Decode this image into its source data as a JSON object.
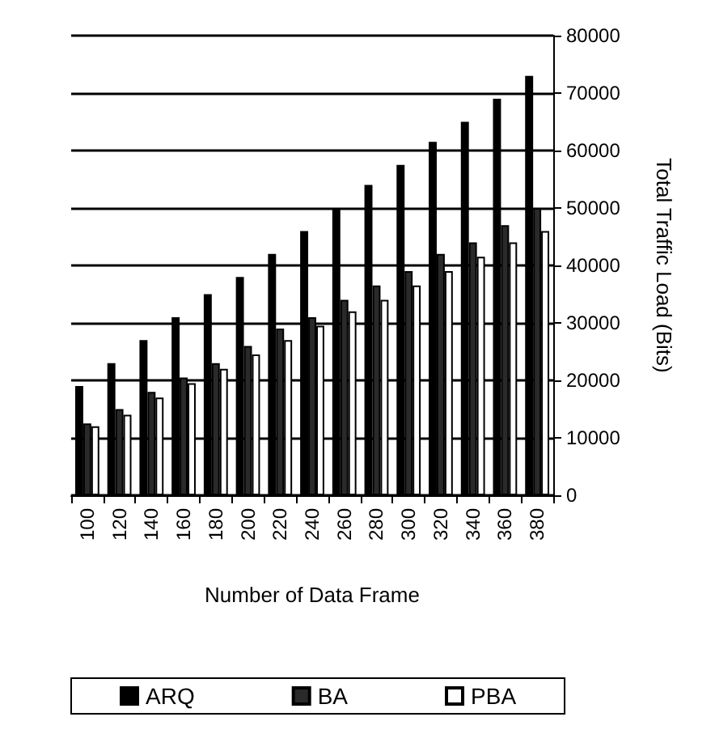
{
  "chart_data": {
    "type": "bar",
    "xlabel": "Number of Data Frame",
    "ylabel": "Total Traffic Load (Bits)",
    "categories": [
      "100",
      "120",
      "140",
      "160",
      "180",
      "200",
      "220",
      "240",
      "260",
      "280",
      "300",
      "320",
      "340",
      "360",
      "380"
    ],
    "series": [
      {
        "name": "ARQ",
        "color": "#000000",
        "values": [
          19000,
          23000,
          27000,
          31000,
          35000,
          38000,
          42000,
          46000,
          50000,
          54000,
          57500,
          61500,
          65000,
          69000,
          73000
        ]
      },
      {
        "name": "BA",
        "color": "#2a2a2a",
        "values": [
          12500,
          15000,
          18000,
          20500,
          23000,
          26000,
          29000,
          31000,
          34000,
          36500,
          39000,
          42000,
          44000,
          47000,
          50000
        ]
      },
      {
        "name": "PBA",
        "color": "#ffffff",
        "values": [
          12000,
          14000,
          17000,
          19500,
          22000,
          24500,
          27000,
          29500,
          32000,
          34000,
          36500,
          39000,
          41500,
          44000,
          46000
        ]
      }
    ],
    "ylim": [
      0,
      80000
    ],
    "yticks": [
      0,
      10000,
      20000,
      30000,
      40000,
      50000,
      60000,
      70000,
      80000
    ],
    "grid": "y",
    "legend": "bottom"
  }
}
